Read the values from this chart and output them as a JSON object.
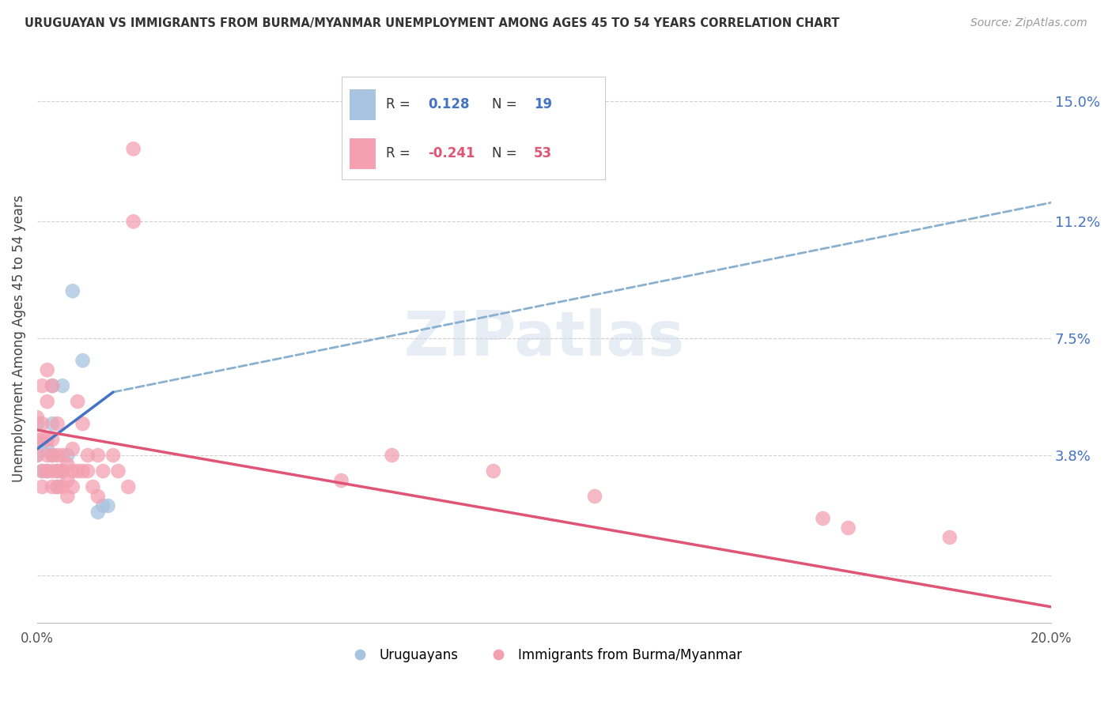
{
  "title": "URUGUAYAN VS IMMIGRANTS FROM BURMA/MYANMAR UNEMPLOYMENT AMONG AGES 45 TO 54 YEARS CORRELATION CHART",
  "source": "Source: ZipAtlas.com",
  "ylabel": "Unemployment Among Ages 45 to 54 years",
  "yticks_right": [
    0.0,
    0.038,
    0.075,
    0.112,
    0.15
  ],
  "ytick_labels_right": [
    "",
    "3.8%",
    "7.5%",
    "11.2%",
    "15.0%"
  ],
  "xlim": [
    0.0,
    0.2
  ],
  "ylim": [
    -0.015,
    0.165
  ],
  "watermark": "ZIPatlas",
  "blue_color": "#a8c4e0",
  "pink_color": "#f4a0b0",
  "blue_line_color": "#4472c4",
  "pink_line_color": "#e05575",
  "dashed_line_color": "#8ab0d0",
  "blue_line_x": [
    0.0,
    0.015
  ],
  "blue_line_y": [
    0.04,
    0.058
  ],
  "dashed_line_x": [
    0.015,
    0.2
  ],
  "dashed_line_y": [
    0.058,
    0.118
  ],
  "pink_line_x": [
    0.0,
    0.2
  ],
  "pink_line_y": [
    0.046,
    -0.01
  ],
  "uruguayan_points": [
    [
      0.0,
      0.048
    ],
    [
      0.0,
      0.038
    ],
    [
      0.001,
      0.042
    ],
    [
      0.001,
      0.033
    ],
    [
      0.002,
      0.04
    ],
    [
      0.002,
      0.033
    ],
    [
      0.003,
      0.048
    ],
    [
      0.003,
      0.038
    ],
    [
      0.003,
      0.06
    ],
    [
      0.004,
      0.033
    ],
    [
      0.004,
      0.028
    ],
    [
      0.005,
      0.06
    ],
    [
      0.005,
      0.033
    ],
    [
      0.006,
      0.038
    ],
    [
      0.007,
      0.09
    ],
    [
      0.009,
      0.068
    ],
    [
      0.012,
      0.02
    ],
    [
      0.013,
      0.022
    ],
    [
      0.014,
      0.022
    ]
  ],
  "myanmar_points": [
    [
      0.0,
      0.05
    ],
    [
      0.0,
      0.043
    ],
    [
      0.0,
      0.038
    ],
    [
      0.001,
      0.048
    ],
    [
      0.001,
      0.043
    ],
    [
      0.001,
      0.06
    ],
    [
      0.001,
      0.033
    ],
    [
      0.001,
      0.028
    ],
    [
      0.002,
      0.043
    ],
    [
      0.002,
      0.038
    ],
    [
      0.002,
      0.033
    ],
    [
      0.002,
      0.055
    ],
    [
      0.002,
      0.065
    ],
    [
      0.003,
      0.028
    ],
    [
      0.003,
      0.033
    ],
    [
      0.003,
      0.038
    ],
    [
      0.003,
      0.043
    ],
    [
      0.003,
      0.06
    ],
    [
      0.004,
      0.048
    ],
    [
      0.004,
      0.038
    ],
    [
      0.004,
      0.033
    ],
    [
      0.004,
      0.028
    ],
    [
      0.005,
      0.038
    ],
    [
      0.005,
      0.033
    ],
    [
      0.005,
      0.028
    ],
    [
      0.006,
      0.03
    ],
    [
      0.006,
      0.025
    ],
    [
      0.006,
      0.035
    ],
    [
      0.007,
      0.04
    ],
    [
      0.007,
      0.033
    ],
    [
      0.007,
      0.028
    ],
    [
      0.008,
      0.033
    ],
    [
      0.008,
      0.055
    ],
    [
      0.009,
      0.048
    ],
    [
      0.009,
      0.033
    ],
    [
      0.01,
      0.038
    ],
    [
      0.01,
      0.033
    ],
    [
      0.011,
      0.028
    ],
    [
      0.012,
      0.038
    ],
    [
      0.012,
      0.025
    ],
    [
      0.013,
      0.033
    ],
    [
      0.015,
      0.038
    ],
    [
      0.016,
      0.033
    ],
    [
      0.018,
      0.028
    ],
    [
      0.019,
      0.135
    ],
    [
      0.019,
      0.112
    ],
    [
      0.06,
      0.03
    ],
    [
      0.07,
      0.038
    ],
    [
      0.09,
      0.033
    ],
    [
      0.11,
      0.025
    ],
    [
      0.155,
      0.018
    ],
    [
      0.16,
      0.015
    ],
    [
      0.18,
      0.012
    ]
  ]
}
